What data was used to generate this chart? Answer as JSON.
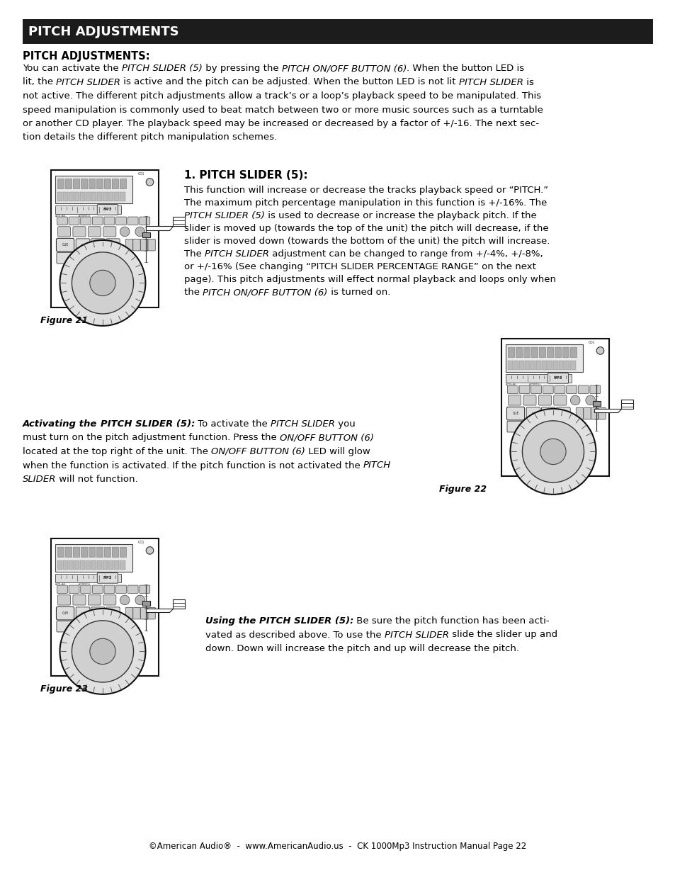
{
  "page_bg": "#ffffff",
  "header_bg": "#1c1c1c",
  "header_text": "PITCH ADJUSTMENTS",
  "header_text_color": "#ffffff",
  "section_title": "PITCH ADJUSTMENTS:",
  "footer_text": "©American Audio®  -  www.AmericanAudio.us  -  CK 1000Mp3 Instruction Manual Page 22",
  "fig1_label": "Figure 21",
  "fig2_label": "Figure 22",
  "fig3_label": "Figure 23",
  "intro_lines": [
    "You can activate the \\textit{PITCH SLIDER (5)} by pressing the \\textit{PITCH ON/OFF BUTTON (6)}. When the button LED is",
    "lit, the \\textit{PITCH SLIDER} is active and the pitch can be adjusted. When the button LED is not lit \\textit{PITCH SLIDER} is",
    "not active. The different pitch adjustments allow a track’s or a loop’s playback speed to be manipulated. This",
    "speed manipulation is commonly used to beat match between two or more music sources such as a turntable",
    "or another CD player. The playback speed may be increased or decreased by a factor of +/-16. The next sec-",
    "tion details the different pitch manipulation schemes."
  ],
  "ps_body_lines": [
    "This function will increase or decrease the tracks playback speed or “PITCH.”",
    "The maximum pitch percentage manipulation in this function is +/-16%. The",
    "\\textit{PITCH SLIDER (5)} is used to decrease or increase the playback pitch. If the",
    "slider is moved up (towards the top of the unit) the pitch will decrease, if the",
    "slider is moved down (towards the bottom of the unit) the pitch will increase.",
    "The \\textit{PITCH SLIDER} adjustment can be changed to range from +/-4%, +/-8%,",
    "or +/-16% (See changing “PITCH SLIDER PERCENTAGE RANGE” on the next",
    "page). This pitch adjustments will effect normal playback and loops only when",
    "the \\textit{PITCH ON/OFF BUTTON (6)} is turned on."
  ]
}
